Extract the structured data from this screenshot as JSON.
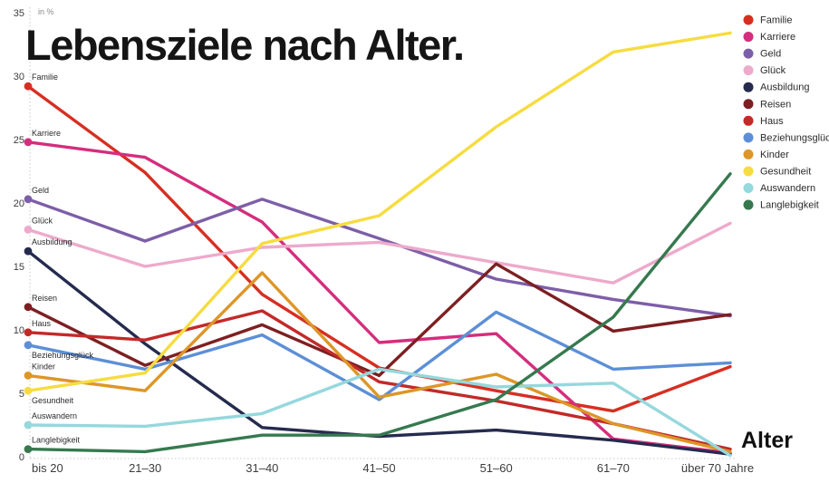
{
  "title": "Lebensziele nach Alter.",
  "unit_label": "in %",
  "x_axis_title": "Alter",
  "chart_data": {
    "type": "line",
    "title": "Lebensziele nach Alter.",
    "ylabel": "in %",
    "xlabel": "Alter",
    "ylim": [
      0,
      35
    ],
    "yticks": [
      0,
      5,
      10,
      15,
      20,
      25,
      30,
      35
    ],
    "grid": "dotted left and bottom axis lines only",
    "legend_position": "right",
    "categories": [
      "bis 20",
      "21–30",
      "31–40",
      "41–50",
      "51–60",
      "61–70",
      "über 70 Jahre"
    ],
    "series": [
      {
        "name": "Familie",
        "color": "#d62f22",
        "label_below": false,
        "values": [
          29.2,
          22.4,
          12.8,
          7.0,
          5.2,
          3.6,
          7.1
        ]
      },
      {
        "name": "Karriere",
        "color": "#d42e7d",
        "label_below": false,
        "values": [
          24.8,
          23.6,
          18.5,
          9.0,
          9.7,
          1.4,
          0.3
        ]
      },
      {
        "name": "Geld",
        "color": "#7d5ea8",
        "label_below": false,
        "values": [
          20.3,
          17.0,
          20.3,
          17.2,
          14.0,
          12.4,
          11.1
        ]
      },
      {
        "name": "Glück",
        "color": "#edaacb",
        "label_below": false,
        "values": [
          17.9,
          15.0,
          16.5,
          16.9,
          15.3,
          13.7,
          18.4
        ]
      },
      {
        "name": "Ausbildung",
        "color": "#252b4e",
        "label_below": false,
        "values": [
          16.2,
          8.9,
          2.3,
          1.6,
          2.1,
          1.3,
          0.2
        ]
      },
      {
        "name": "Reisen",
        "color": "#7d1f22",
        "label_below": false,
        "values": [
          11.8,
          7.2,
          10.4,
          6.4,
          15.2,
          9.9,
          11.2
        ]
      },
      {
        "name": "Haus",
        "color": "#c22a28",
        "label_below": false,
        "values": [
          9.8,
          9.2,
          11.5,
          5.9,
          4.4,
          2.6,
          0.6
        ]
      },
      {
        "name": "Beziehungsglück",
        "color": "#5c8fd6",
        "label_below": true,
        "values": [
          8.8,
          6.9,
          9.6,
          4.5,
          11.4,
          6.9,
          7.4
        ]
      },
      {
        "name": "Kinder",
        "color": "#dd9627",
        "label_below": false,
        "values": [
          6.4,
          5.2,
          14.5,
          4.7,
          6.5,
          2.6,
          0.4
        ]
      },
      {
        "name": "Gesundheit",
        "color": "#f6dc40",
        "label_below": true,
        "values": [
          5.2,
          6.6,
          16.8,
          19.0,
          26.0,
          31.9,
          33.4
        ]
      },
      {
        "name": "Auswandern",
        "color": "#95d8dd",
        "label_below": false,
        "values": [
          2.5,
          2.4,
          3.4,
          6.9,
          5.5,
          5.8,
          0.1
        ]
      },
      {
        "name": "Langlebigkeit",
        "color": "#36794f",
        "label_below": false,
        "values": [
          0.6,
          0.4,
          1.7,
          1.7,
          4.5,
          11.0,
          22.3
        ]
      }
    ]
  }
}
